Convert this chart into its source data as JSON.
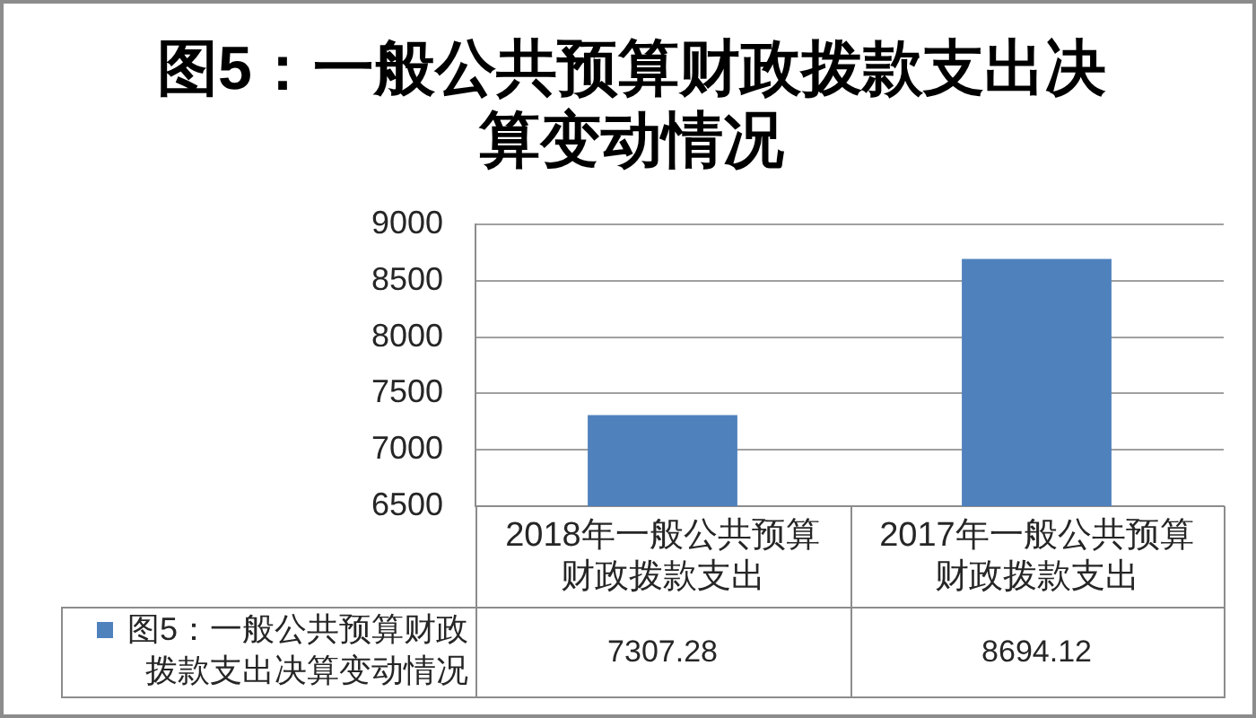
{
  "chart_data": {
    "type": "bar",
    "title": "图5：一般公共预算财政拨款支出决算变动情况",
    "categories": [
      "2018年一般公共预算财政拨款支出",
      "2017年一般公共预算财政拨款支出"
    ],
    "series": [
      {
        "name": "图5：一般公共预算财政拨款支出决算变动情况",
        "color": "#4f81bd",
        "values": [
          7307.28,
          8694.12
        ]
      }
    ],
    "ylim": [
      6500,
      9000
    ],
    "yticks": [
      6500,
      7000,
      7500,
      8000,
      8500,
      9000
    ],
    "grid": "y",
    "legend": "bottom left",
    "data_labels": true
  }
}
